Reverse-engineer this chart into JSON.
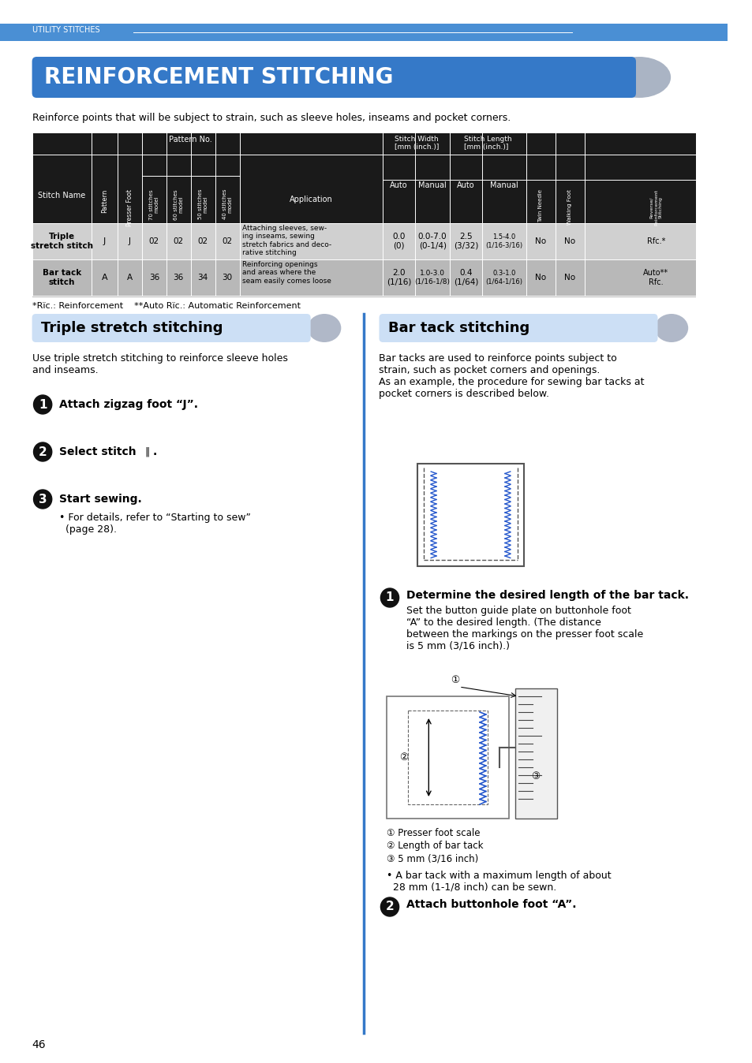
{
  "page_bg": "#ffffff",
  "top_bar_color": "#4a8fd4",
  "top_bar_text": "UTILITY STITCHES",
  "main_title": "REINFORCEMENT STITCHING",
  "main_title_bg": "#3579c8",
  "intro_text": "Reinforce points that will be subject to strain, such as sleeve holes, inseams and pocket corners.",
  "table_header_bg": "#1a1a1a",
  "table_row1_bg": "#d0d0d0",
  "table_row2_bg": "#b8b8b8",
  "section1_title": "Triple stretch stitching",
  "section2_title": "Bar tack stitching",
  "section_bg": "#ccdff5",
  "blue_line_color": "#3579c8",
  "page_number": "46",
  "footnote": "*Rïc.: Reinforcement    **Auto Rïc.: Automatic Reinforcement",
  "s1_intro": "Use triple stretch stitching to reinforce sleeve holes\nand inseams.",
  "s1_step1": "Attach zigzag foot “J”.",
  "s1_step2": "Select stitch      .",
  "s1_step3": "Start sewing.",
  "s1_bullet": "• For details, refer to “Starting to sew”\n  (page 28).",
  "s2_intro": "Bar tacks are used to reinforce points subject to\nstrain, such as pocket corners and openings.\nAs an example, the procedure for sewing bar tacks at\npocket corners is described below.",
  "s2_step1_bold": "Determine the desired length of the bar tack.",
  "s2_step1_body": "Set the button guide plate on buttonhole foot\n“A” to the desired length. (The distance\nbetween the markings on the presser foot scale\nis 5 mm (3/16 inch).)",
  "s2_legend1": "① Presser foot scale",
  "s2_legend2": "② Length of bar tack",
  "s2_legend3": "③ 5 mm (3/16 inch)",
  "s2_bullet": "• A bar tack with a maximum length of about\n  28 mm (1-1/8 inch) can be sewn.",
  "s2_step2": "Attach buttonhole foot “A”."
}
